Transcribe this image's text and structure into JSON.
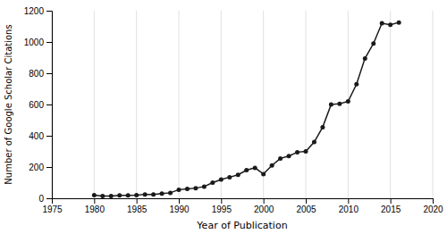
{
  "chart_data": {
    "type": "line",
    "xlabel": "Year of Publication",
    "ylabel": "Number of Google Scholar Citations",
    "x": [
      1980,
      1981,
      1982,
      1983,
      1984,
      1985,
      1986,
      1987,
      1988,
      1989,
      1990,
      1991,
      1992,
      1993,
      1994,
      1995,
      1996,
      1997,
      1998,
      1999,
      2000,
      2001,
      2002,
      2003,
      2004,
      2005,
      2006,
      2007,
      2008,
      2009,
      2010,
      2011,
      2012,
      2013,
      2014,
      2015,
      2016
    ],
    "values": [
      20,
      15,
      15,
      18,
      18,
      20,
      25,
      25,
      30,
      35,
      55,
      60,
      65,
      75,
      100,
      120,
      135,
      150,
      180,
      195,
      155,
      210,
      255,
      270,
      295,
      300,
      360,
      455,
      600,
      605,
      620,
      730,
      895,
      990,
      1120,
      1110,
      1125
    ],
    "color": "#1a1a1a",
    "marker": "circle",
    "xlim": [
      1975,
      2020
    ],
    "ylim": [
      0,
      1200
    ],
    "xticks": [
      1975,
      1980,
      1985,
      1990,
      1995,
      2000,
      2005,
      2010,
      2015,
      2020
    ],
    "yticks": [
      0,
      200,
      400,
      600,
      800,
      1000,
      1200
    ],
    "grid": "x"
  }
}
